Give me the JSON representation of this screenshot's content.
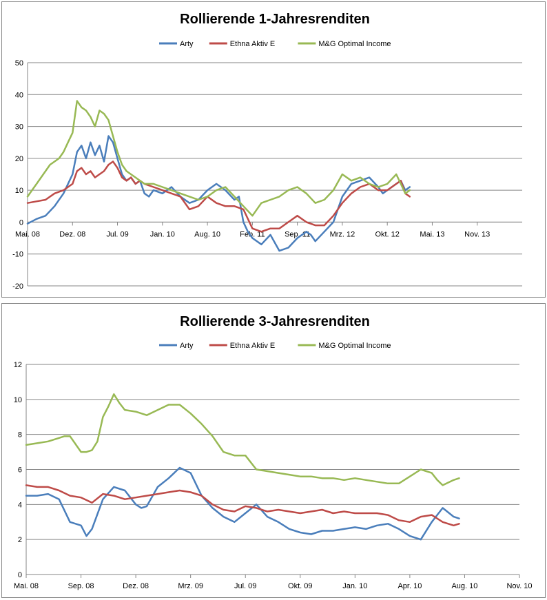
{
  "chart_data": [
    {
      "type": "line",
      "title": "Rollierende 1-Jahresrenditen",
      "xlabel": "",
      "ylabel": "",
      "ylim": [
        -20,
        50
      ],
      "y_ticks": [
        "-20",
        "-10",
        "0",
        "10",
        "20",
        "30",
        "40",
        "50"
      ],
      "x_ticks": [
        "Mai. 08",
        "Dez. 08",
        "Jul. 09",
        "Jan. 10",
        "Aug. 10",
        "Feb. 11",
        "Sep. 11",
        "Mrz. 12",
        "Okt. 12",
        "Mai. 13",
        "Nov. 13"
      ],
      "x_range": [
        0,
        11
      ],
      "grid": "horizontal",
      "legend": "top",
      "series": [
        {
          "name": "Arty",
          "color": "#4A7EBB",
          "x": [
            0,
            0.2,
            0.4,
            0.6,
            0.8,
            1.0,
            1.1,
            1.2,
            1.3,
            1.4,
            1.5,
            1.6,
            1.7,
            1.8,
            1.9,
            2.0,
            2.1,
            2.2,
            2.3,
            2.4,
            2.5,
            2.6,
            2.7,
            2.8,
            3.0,
            3.2,
            3.4,
            3.6,
            3.8,
            4.0,
            4.2,
            4.4,
            4.6,
            4.7,
            4.8,
            4.9,
            5.0,
            5.2,
            5.4,
            5.6,
            5.8,
            6.0,
            6.2,
            6.3,
            6.4,
            6.6,
            6.8,
            7.0,
            7.2,
            7.4,
            7.6,
            7.8,
            7.9,
            8.0,
            8.1,
            8.2,
            8.3,
            8.4,
            8.5
          ],
          "values": [
            -0.5,
            1,
            2,
            5,
            9,
            15,
            22,
            24,
            20,
            25,
            21,
            24,
            19,
            27,
            25,
            20,
            15,
            13,
            14,
            12,
            13,
            9,
            8,
            10,
            9,
            11,
            8,
            6,
            7,
            10,
            12,
            10,
            7,
            8,
            0,
            -3,
            -5,
            -7,
            -4,
            -9,
            -8,
            -5,
            -3,
            -4,
            -6,
            -3,
            0,
            8,
            12,
            13,
            14,
            11,
            9,
            10,
            11,
            12,
            13,
            10,
            11
          ]
        },
        {
          "name": "Ethna Aktiv E",
          "color": "#BE4B48",
          "x": [
            0,
            0.2,
            0.4,
            0.6,
            0.8,
            1.0,
            1.1,
            1.2,
            1.3,
            1.4,
            1.5,
            1.6,
            1.7,
            1.8,
            1.9,
            2.0,
            2.1,
            2.2,
            2.3,
            2.4,
            2.5,
            2.6,
            2.8,
            3.0,
            3.2,
            3.4,
            3.6,
            3.8,
            4.0,
            4.2,
            4.4,
            4.6,
            4.8,
            5.0,
            5.2,
            5.4,
            5.6,
            5.8,
            6.0,
            6.2,
            6.4,
            6.6,
            6.8,
            7.0,
            7.2,
            7.4,
            7.6,
            7.8,
            8.0,
            8.2,
            8.3,
            8.4,
            8.5
          ],
          "values": [
            6,
            6.5,
            7,
            9,
            10,
            12,
            16,
            17,
            15,
            16,
            14,
            15,
            16,
            18,
            19,
            17,
            14,
            13,
            14,
            12,
            13,
            12,
            11,
            10,
            9,
            8,
            4,
            5,
            8,
            6,
            5,
            5,
            4,
            -2,
            -3,
            -2,
            -2,
            0,
            2,
            0,
            -1,
            -1,
            2,
            6,
            9,
            11,
            12,
            10,
            10,
            12,
            13,
            9,
            8
          ]
        },
        {
          "name": "M&G Optimal Income",
          "color": "#98B954",
          "x": [
            0,
            0.1,
            0.2,
            0.3,
            0.4,
            0.5,
            0.6,
            0.7,
            0.8,
            0.9,
            1.0,
            1.1,
            1.2,
            1.3,
            1.4,
            1.5,
            1.6,
            1.7,
            1.8,
            1.9,
            2.0,
            2.1,
            2.2,
            2.3,
            2.4,
            2.5,
            2.6,
            2.8,
            3.0,
            3.2,
            3.4,
            3.6,
            3.8,
            4.0,
            4.2,
            4.4,
            4.6,
            4.8,
            5.0,
            5.2,
            5.4,
            5.6,
            5.8,
            6.0,
            6.2,
            6.4,
            6.6,
            6.8,
            7.0,
            7.2,
            7.4,
            7.6,
            7.8,
            8.0,
            8.2,
            8.3,
            8.4,
            8.5
          ],
          "values": [
            8,
            10,
            12,
            14,
            16,
            18,
            19,
            20,
            22,
            25,
            28,
            38,
            36,
            35,
            33,
            30,
            35,
            34,
            32,
            27,
            22,
            18,
            16,
            15,
            14,
            13,
            12,
            12,
            11,
            10,
            9,
            8,
            7,
            8,
            10,
            11,
            8,
            5,
            2,
            6,
            7,
            8,
            10,
            11,
            9,
            6,
            7,
            10,
            15,
            13,
            14,
            12,
            11,
            12,
            15,
            12,
            9,
            10
          ]
        }
      ]
    },
    {
      "type": "line",
      "title": "Rollierende 3-Jahresrenditen",
      "xlabel": "",
      "ylabel": "",
      "ylim": [
        0,
        12
      ],
      "y_ticks": [
        "0",
        "2",
        "4",
        "6",
        "8",
        "10",
        "12"
      ],
      "x_ticks": [
        "Mai. 08",
        "Sep. 08",
        "Dez. 08",
        "Mrz. 09",
        "Jul. 09",
        "Okt. 09",
        "Jan. 10",
        "Apr. 10",
        "Aug. 10",
        "Nov. 10"
      ],
      "x_range": [
        0,
        9
      ],
      "grid": "horizontal",
      "legend": "top",
      "series": [
        {
          "name": "Arty",
          "color": "#4A7EBB",
          "x": [
            0,
            0.2,
            0.4,
            0.6,
            0.8,
            1.0,
            1.1,
            1.2,
            1.4,
            1.6,
            1.8,
            1.9,
            2.0,
            2.1,
            2.2,
            2.4,
            2.6,
            2.8,
            3.0,
            3.2,
            3.4,
            3.6,
            3.8,
            4.0,
            4.2,
            4.4,
            4.6,
            4.8,
            5.0,
            5.2,
            5.4,
            5.6,
            5.8,
            6.0,
            6.2,
            6.4,
            6.6,
            6.8,
            7.0,
            7.2,
            7.4,
            7.6,
            7.8,
            7.9
          ],
          "values": [
            4.5,
            4.5,
            4.6,
            4.3,
            3.0,
            2.8,
            2.2,
            2.6,
            4.3,
            5.0,
            4.8,
            4.4,
            4.0,
            3.8,
            3.9,
            5.0,
            5.5,
            6.1,
            5.8,
            4.5,
            3.8,
            3.3,
            3.0,
            3.5,
            4.0,
            3.3,
            3.0,
            2.6,
            2.4,
            2.3,
            2.5,
            2.5,
            2.6,
            2.7,
            2.6,
            2.8,
            2.9,
            2.6,
            2.2,
            2.0,
            3.0,
            3.8,
            3.3,
            3.2
          ]
        },
        {
          "name": "Ethna Aktiv E",
          "color": "#BE4B48",
          "x": [
            0,
            0.2,
            0.4,
            0.6,
            0.8,
            1.0,
            1.2,
            1.4,
            1.6,
            1.8,
            2.0,
            2.2,
            2.4,
            2.6,
            2.8,
            3.0,
            3.2,
            3.4,
            3.6,
            3.8,
            4.0,
            4.2,
            4.4,
            4.6,
            4.8,
            5.0,
            5.2,
            5.4,
            5.6,
            5.8,
            6.0,
            6.2,
            6.4,
            6.6,
            6.8,
            7.0,
            7.2,
            7.4,
            7.6,
            7.8,
            7.9
          ],
          "values": [
            5.1,
            5.0,
            5.0,
            4.8,
            4.5,
            4.4,
            4.1,
            4.6,
            4.5,
            4.3,
            4.4,
            4.5,
            4.6,
            4.7,
            4.8,
            4.7,
            4.5,
            4.0,
            3.7,
            3.6,
            3.9,
            3.8,
            3.6,
            3.7,
            3.6,
            3.5,
            3.6,
            3.7,
            3.5,
            3.6,
            3.5,
            3.5,
            3.5,
            3.4,
            3.1,
            3.0,
            3.3,
            3.4,
            3.0,
            2.8,
            2.9
          ]
        },
        {
          "name": "M&G Optimal Income",
          "color": "#98B954",
          "x": [
            0,
            0.2,
            0.4,
            0.6,
            0.7,
            0.8,
            1.0,
            1.1,
            1.2,
            1.3,
            1.4,
            1.5,
            1.6,
            1.7,
            1.8,
            2.0,
            2.2,
            2.4,
            2.6,
            2.8,
            3.0,
            3.2,
            3.4,
            3.6,
            3.8,
            4.0,
            4.2,
            4.4,
            4.6,
            4.8,
            5.0,
            5.2,
            5.4,
            5.6,
            5.8,
            6.0,
            6.2,
            6.4,
            6.6,
            6.8,
            7.0,
            7.2,
            7.4,
            7.5,
            7.6,
            7.8,
            7.9
          ],
          "values": [
            7.4,
            7.5,
            7.6,
            7.8,
            7.9,
            7.9,
            7.0,
            7.0,
            7.1,
            7.6,
            9.0,
            9.6,
            10.3,
            9.8,
            9.4,
            9.3,
            9.1,
            9.4,
            9.7,
            9.7,
            9.2,
            8.6,
            7.9,
            7.0,
            6.8,
            6.8,
            6.0,
            5.9,
            5.8,
            5.7,
            5.6,
            5.6,
            5.5,
            5.5,
            5.4,
            5.5,
            5.4,
            5.3,
            5.2,
            5.2,
            5.6,
            6.0,
            5.8,
            5.4,
            5.1,
            5.4,
            5.5
          ]
        }
      ]
    }
  ]
}
